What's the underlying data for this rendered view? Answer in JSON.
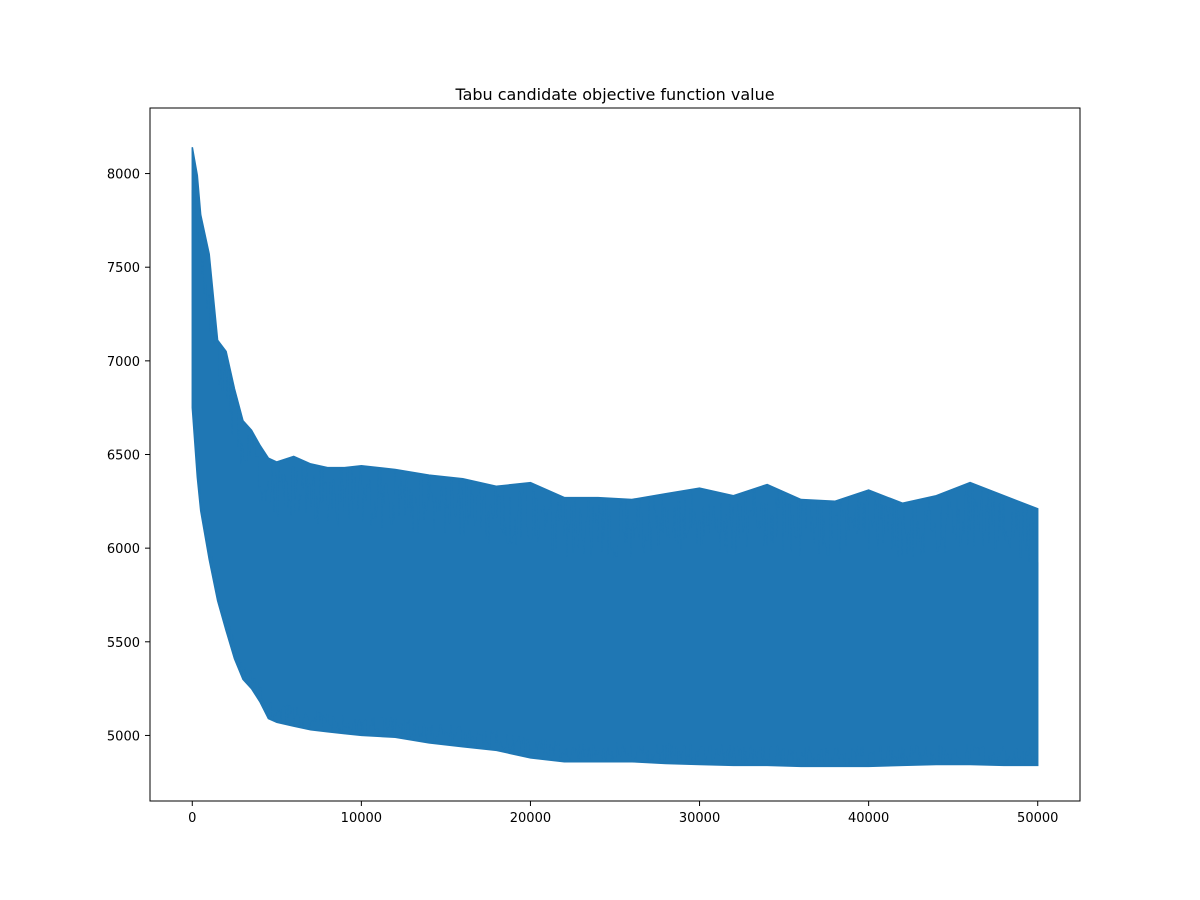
{
  "chart_data": {
    "type": "line",
    "title": "Tabu candidate objective function value",
    "xlabel": "",
    "ylabel": "",
    "xlim": [
      -2500,
      52500
    ],
    "ylim": [
      4650,
      8350
    ],
    "xticks": [
      0,
      10000,
      20000,
      30000,
      40000,
      50000
    ],
    "yticks": [
      5000,
      5500,
      6000,
      6500,
      7000,
      7500,
      8000
    ],
    "grid": false,
    "legend": "none",
    "series": [
      {
        "color": "#1f77b4",
        "envelope_x": [
          0,
          300,
          500,
          1000,
          1500,
          2000,
          2500,
          3000,
          3500,
          4000,
          4500,
          5000,
          6000,
          7000,
          8000,
          9000,
          10000,
          12000,
          14000,
          16000,
          18000,
          20000,
          22000,
          24000,
          26000,
          28000,
          30000,
          32000,
          34000,
          36000,
          38000,
          40000,
          42000,
          44000,
          46000,
          48000,
          50000
        ],
        "upper": [
          8140,
          7990,
          7780,
          7570,
          7110,
          7050,
          6850,
          6680,
          6630,
          6550,
          6480,
          6460,
          6490,
          6450,
          6430,
          6430,
          6440,
          6420,
          6390,
          6370,
          6330,
          6350,
          6270,
          6270,
          6260,
          6290,
          6320,
          6280,
          6340,
          6260,
          6250,
          6310,
          6240,
          6280,
          6350,
          6280,
          6210
        ],
        "lower": [
          6750,
          6380,
          6200,
          5940,
          5720,
          5560,
          5410,
          5300,
          5250,
          5180,
          5090,
          5070,
          5050,
          5030,
          5020,
          5010,
          5000,
          4990,
          4960,
          4940,
          4920,
          4880,
          4860,
          4860,
          4860,
          4850,
          4845,
          4840,
          4840,
          4835,
          4835,
          4835,
          4840,
          4845,
          4845,
          4840,
          4840
        ]
      }
    ]
  }
}
